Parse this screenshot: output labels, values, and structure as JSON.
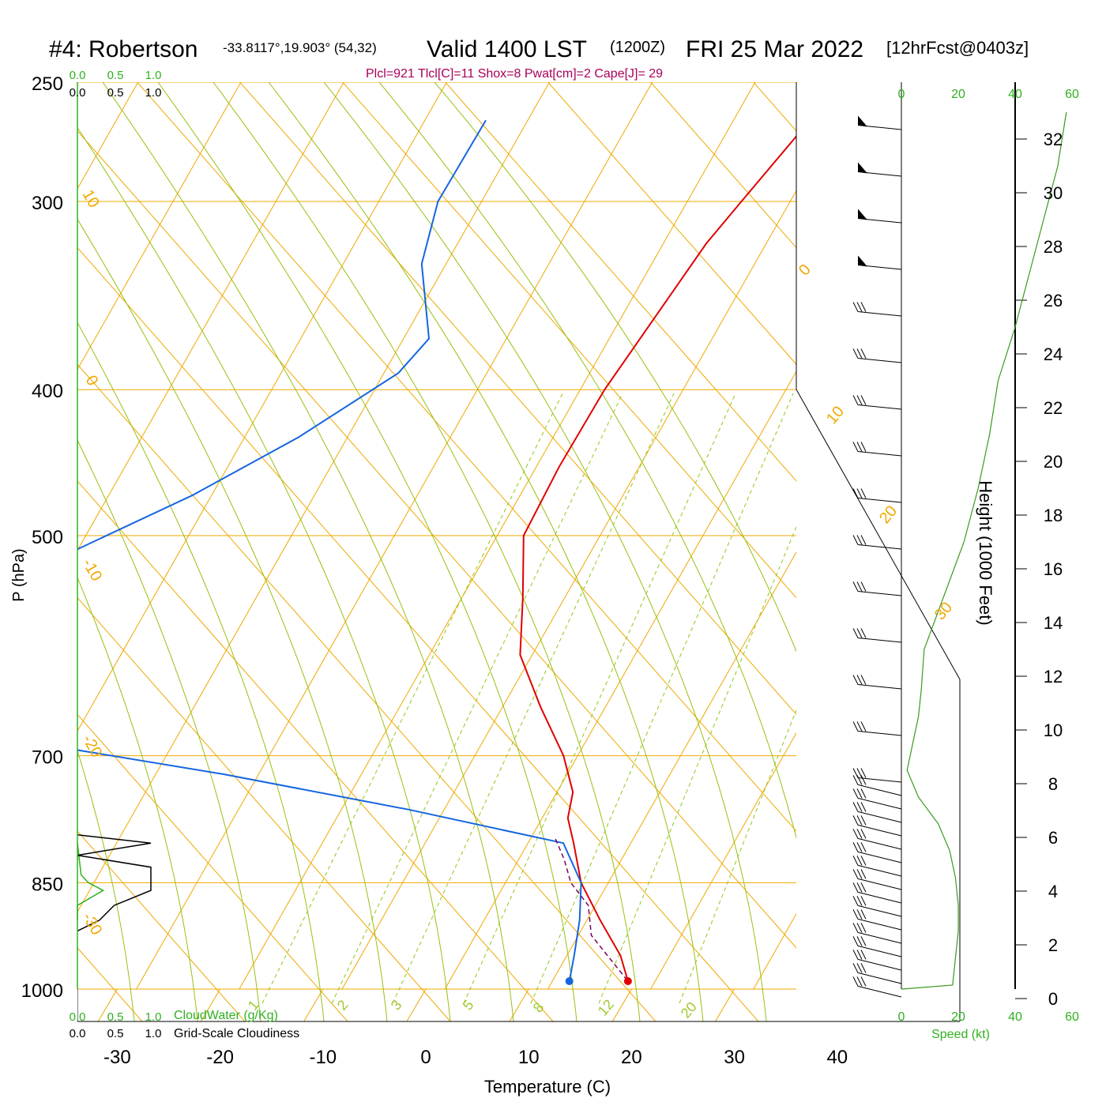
{
  "header": {
    "site": "#4: Robertson",
    "coords": "-33.8117°,19.903° (54,32)",
    "valid": "Valid 1400 LST",
    "zulu": "(1200Z)",
    "date": "FRI 25 Mar 2022",
    "forecast": "[12hrFcst@0403z]"
  },
  "chart_data": {
    "type": "line",
    "title": "#4: Robertson -33.8117°,19.903° (54,32) Valid 1400 LST (1200Z) FRI 25 Mar 2022 [12hrFcst@0403z]",
    "parcel_text": "Plcl=921 Tlcl[C]=11 Shox=8 Pwat[cm]=2 Cape[J]= 29",
    "xlabel": "Temperature (C)",
    "ylabel": "P (hPa)",
    "y2label": "Height (1000 Feet)",
    "x_ticks": [
      "-30",
      "-20",
      "-10",
      "0",
      "10",
      "20",
      "30",
      "40"
    ],
    "y_ticks": [
      "250",
      "300",
      "400",
      "500",
      "700",
      "850",
      "1000"
    ],
    "height_ticks": [
      "0",
      "2",
      "4",
      "6",
      "8",
      "10",
      "12",
      "14",
      "16",
      "18",
      "20",
      "22",
      "24",
      "26",
      "28",
      "30",
      "32"
    ],
    "cloud_ticks": [
      "0.0",
      "0.5",
      "1.0"
    ],
    "cloudwater_label": "CloudWater (g/Kg)",
    "cloudiness_label": "Grid-Scale Cloudiness",
    "speed_ticks": [
      "0",
      "20",
      "40",
      "60"
    ],
    "speed_label": "Speed (kt)",
    "dry_adiabat_labels": [
      "10",
      "0",
      "-10",
      "-20",
      "-30",
      "0",
      "10",
      "20",
      "30"
    ],
    "mixing_ratio_labels": [
      "1",
      "2",
      "3",
      "5",
      "8",
      "12",
      "20"
    ],
    "series": [
      {
        "name": "Temperature",
        "color": "#e00000",
        "points": [
          {
            "p": 265,
            "t": -12.5
          },
          {
            "p": 300,
            "t": -14.5
          },
          {
            "p": 320,
            "t": -15.5
          },
          {
            "p": 400,
            "t": -17
          },
          {
            "p": 450,
            "t": -17
          },
          {
            "p": 500,
            "t": -16.5
          },
          {
            "p": 550,
            "t": -13
          },
          {
            "p": 600,
            "t": -10
          },
          {
            "p": 650,
            "t": -5
          },
          {
            "p": 700,
            "t": 0
          },
          {
            "p": 740,
            "t": 3
          },
          {
            "p": 770,
            "t": 4
          },
          {
            "p": 800,
            "t": 6
          },
          {
            "p": 850,
            "t": 9
          },
          {
            "p": 900,
            "t": 13
          },
          {
            "p": 950,
            "t": 17
          },
          {
            "p": 988,
            "t": 19.2
          }
        ]
      },
      {
        "name": "Dewpoint",
        "color": "#1565e0",
        "points": [
          {
            "p": 265,
            "t": -44
          },
          {
            "p": 300,
            "t": -44
          },
          {
            "p": 330,
            "t": -42
          },
          {
            "p": 370,
            "t": -37
          },
          {
            "p": 390,
            "t": -38
          },
          {
            "p": 430,
            "t": -44
          },
          {
            "p": 470,
            "t": -51
          },
          {
            "p": 510,
            "t": -59
          },
          {
            "p": 550,
            "t": -66
          },
          {
            "p": 590,
            "t": -70
          },
          {
            "p": 600,
            "t": -68
          },
          {
            "p": 650,
            "t": -60
          },
          {
            "p": 690,
            "t": -50
          },
          {
            "p": 720,
            "t": -32
          },
          {
            "p": 760,
            "t": -12
          },
          {
            "p": 800,
            "t": 5
          },
          {
            "p": 850,
            "t": 9
          },
          {
            "p": 900,
            "t": 11
          },
          {
            "p": 950,
            "t": 12.5
          },
          {
            "p": 988,
            "t": 13.5
          }
        ]
      },
      {
        "name": "Parcel",
        "color": "#7a0060",
        "points": [
          {
            "p": 795,
            "t": 4
          },
          {
            "p": 820,
            "t": 6
          },
          {
            "p": 850,
            "t": 8
          },
          {
            "p": 880,
            "t": 11
          },
          {
            "p": 921,
            "t": 13
          },
          {
            "p": 988,
            "t": 19.2
          }
        ]
      }
    ],
    "surface": {
      "temperature_c": 19.2,
      "dewpoint_c": 13.5,
      "pressure_hpa": 988
    },
    "wind_speed_profile_kt": [
      {
        "h": 0.5,
        "kt": 18
      },
      {
        "h": 1.5,
        "kt": 19
      },
      {
        "h": 2.5,
        "kt": 20
      },
      {
        "h": 3.5,
        "kt": 20
      },
      {
        "h": 4.5,
        "kt": 19
      },
      {
        "h": 5.5,
        "kt": 17
      },
      {
        "h": 6.5,
        "kt": 13
      },
      {
        "h": 7.5,
        "kt": 6
      },
      {
        "h": 8.5,
        "kt": 2
      },
      {
        "h": 9.5,
        "kt": 4
      },
      {
        "h": 10.5,
        "kt": 6
      },
      {
        "h": 11.5,
        "kt": 7
      },
      {
        "h": 13,
        "kt": 8
      },
      {
        "h": 15,
        "kt": 15
      },
      {
        "h": 17,
        "kt": 22
      },
      {
        "h": 19,
        "kt": 27
      },
      {
        "h": 21,
        "kt": 31
      },
      {
        "h": 23,
        "kt": 34
      },
      {
        "h": 25,
        "kt": 40
      },
      {
        "h": 27,
        "kt": 45
      },
      {
        "h": 29,
        "kt": 50
      },
      {
        "h": 31,
        "kt": 55
      },
      {
        "h": 33,
        "kt": 58
      }
    ],
    "cloudwater_gkg": [
      {
        "p": 800,
        "v": 0
      },
      {
        "p": 840,
        "v": 0.05
      },
      {
        "p": 850,
        "v": 0.15
      },
      {
        "p": 860,
        "v": 0.35
      },
      {
        "p": 880,
        "v": 0.0
      },
      {
        "p": 900,
        "v": 0
      }
    ],
    "cloudiness": [
      {
        "p": 790,
        "v": 0
      },
      {
        "p": 800,
        "v": 1.0
      },
      {
        "p": 815,
        "v": 0
      },
      {
        "p": 830,
        "v": 1.0
      },
      {
        "p": 860,
        "v": 1.0
      },
      {
        "p": 880,
        "v": 0.5
      },
      {
        "p": 900,
        "v": 0.3
      },
      {
        "p": 915,
        "v": 0
      }
    ]
  }
}
